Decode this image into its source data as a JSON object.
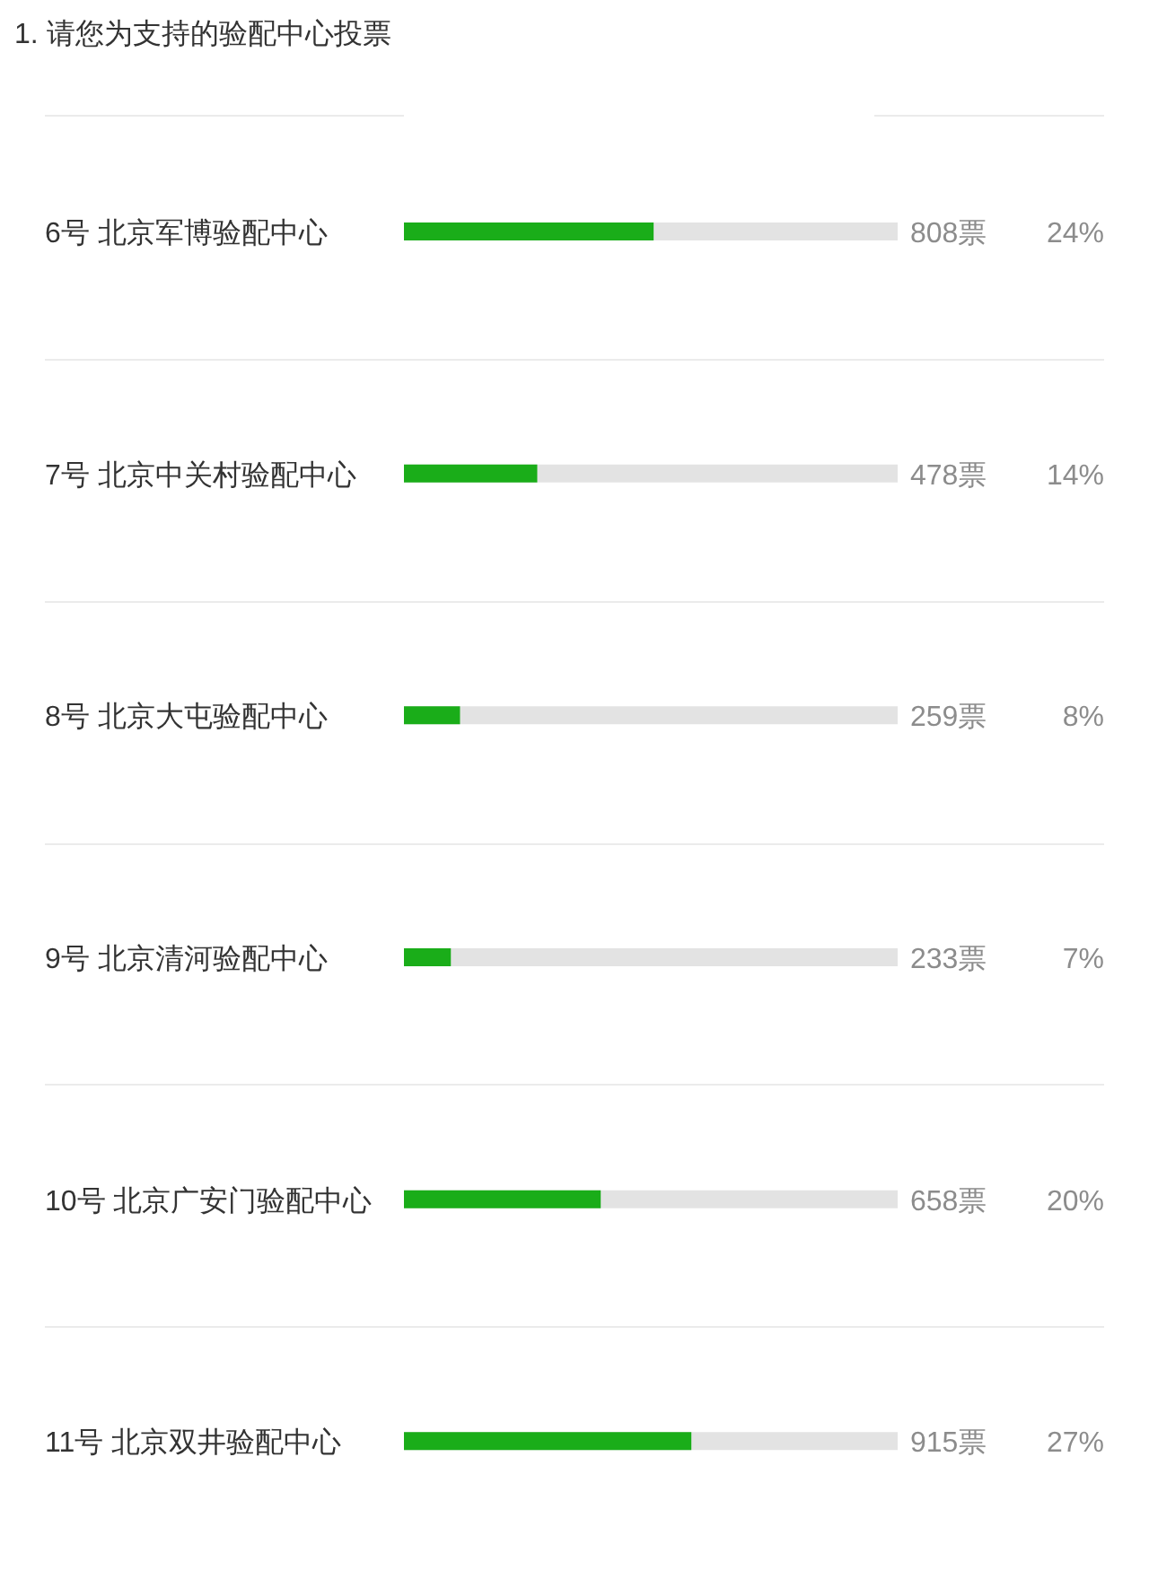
{
  "chart_data": {
    "type": "bar",
    "orientation": "horizontal",
    "title": "1. 请您为支持的验配中心投票",
    "categories": [
      "6号 北京军博验配中心",
      "7号 北京中关村验配中心",
      "8号 北京大屯验配中心",
      "9号 北京清河验配中心",
      "10号 北京广安门验配中心",
      "11号 北京双井验配中心"
    ],
    "values": [
      808,
      478,
      259,
      233,
      658,
      915
    ],
    "value_labels": [
      "808票",
      "478票",
      "259票",
      "233票",
      "658票",
      "915票"
    ],
    "annotations": [
      "24%",
      "14%",
      "8%",
      "7%",
      "20%",
      "27%"
    ],
    "color": "#1aad19",
    "xlim": [
      100,
      1500
    ],
    "tick_labels": "y",
    "grid": false,
    "legend": false
  }
}
